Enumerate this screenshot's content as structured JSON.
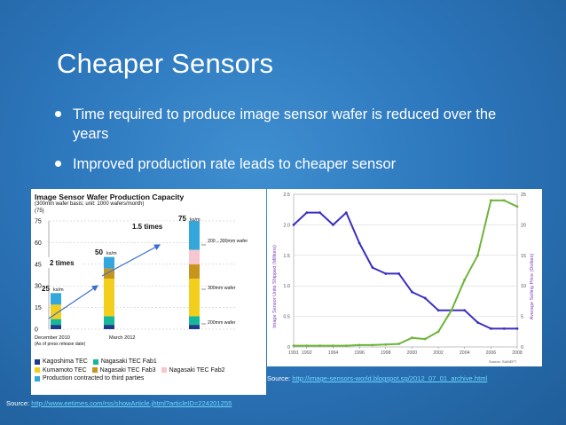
{
  "slide": {
    "title": "Cheaper Sensors",
    "bullets": [
      "Time required to produce image sensor wafer is reduced over the years",
      "Improved production rate leads to cheaper sensor"
    ]
  },
  "left_figure": {
    "title": "Image Sensor Wafer Production Capacity",
    "subtitle": "(300mm wafer basis; unit: 1000 wafers/month)",
    "units": "(75)",
    "annotations": {
      "growth_1": "2 times",
      "growth_2": "1.5 times",
      "label_25": "25",
      "label_25_unit": "ks/m",
      "label_50": "50",
      "label_50_unit": "ks/m",
      "label_75": "75",
      "label_75_unit": "ks/m",
      "wafer_200_300": "200→300mm wafer",
      "wafer_300": "300mm wafer",
      "wafer_200": "200mm wafer",
      "date_1": "December 2010",
      "date_1_note": "(As of press release date)",
      "date_2": "March 2012"
    },
    "legend": [
      {
        "label": "Kagoshima TEC",
        "color": "#1f3a8a"
      },
      {
        "label": "Nagasaki TEC Fab1",
        "color": "#17b89a"
      },
      {
        "label": "Kumamoto TEC",
        "color": "#f2cf1d"
      },
      {
        "label": "Nagasaki TEC Fab3",
        "color": "#c8951c"
      },
      {
        "label": "Nagasaki TEC Fab2",
        "color": "#f7c6cf"
      },
      {
        "label": "Production contracted to third parties",
        "color": "#33a6dc"
      }
    ]
  },
  "chart_data": [
    {
      "type": "bar",
      "title": "Image Sensor Wafer Production Capacity",
      "ylim": [
        0,
        75
      ],
      "yticks": [
        0,
        15,
        30,
        45,
        60,
        75
      ],
      "categories": [
        "December 2010",
        "March 2012",
        ""
      ],
      "series": [
        {
          "name": "Kagoshima TEC",
          "values": [
            3,
            3,
            3
          ]
        },
        {
          "name": "Nagasaki TEC Fab1",
          "values": [
            4,
            6,
            6
          ]
        },
        {
          "name": "Kumamoto TEC",
          "values": [
            10,
            26,
            26
          ]
        },
        {
          "name": "Nagasaki TEC Fab3",
          "values": [
            0,
            7,
            10
          ]
        },
        {
          "name": "Nagasaki TEC Fab2",
          "values": [
            0,
            0,
            10
          ]
        },
        {
          "name": "Production contracted to third parties",
          "values": [
            8,
            8,
            20
          ]
        }
      ]
    },
    {
      "type": "line",
      "x": [
        1991,
        1992,
        1993,
        1994,
        1995,
        1996,
        1997,
        1998,
        1999,
        2000,
        2001,
        2002,
        2003,
        2004,
        2005,
        2006,
        2007,
        2008
      ],
      "xticks": [
        "1991",
        "1992",
        "1994",
        "1996",
        "1998",
        "2000",
        "2002",
        "2004",
        "2006",
        "2008"
      ],
      "ylabel": "Image Sensor Units Shipped (Millions)",
      "y2label": "Average Selling Price (Dollars)",
      "ylim": [
        0,
        2.5
      ],
      "yticks": [
        "0",
        "0.5",
        "1.0",
        "1.5",
        "2.0",
        "2.5"
      ],
      "y2lim": [
        0,
        25
      ],
      "y2ticks": [
        "0",
        "5",
        "10",
        "15",
        "20",
        "25"
      ],
      "series": [
        {
          "color": "#3a2fbf",
          "axis": "right",
          "values": [
            20,
            22,
            22,
            20,
            22,
            17,
            13,
            12,
            12,
            9,
            8,
            6,
            6,
            6,
            4,
            3,
            3,
            3
          ]
        },
        {
          "color": "#6fb43a",
          "axis": "left",
          "values": [
            0.02,
            0.02,
            0.02,
            0.02,
            0.02,
            0.03,
            0.03,
            0.04,
            0.05,
            0.15,
            0.13,
            0.25,
            0.6,
            1.1,
            1.5,
            2.4,
            2.4,
            2.3
          ]
        }
      ],
      "credit": "Source: SAMEPT"
    }
  ],
  "sources": {
    "right_prefix": "Source: ",
    "right_url": "http://image-sensors-world.blogspot.sg/2012_07_01_archive.html",
    "left_prefix": "Source: ",
    "left_url": "http://www.eetimes.com/rss/showArticle.jhtml?articleID=224201255"
  }
}
